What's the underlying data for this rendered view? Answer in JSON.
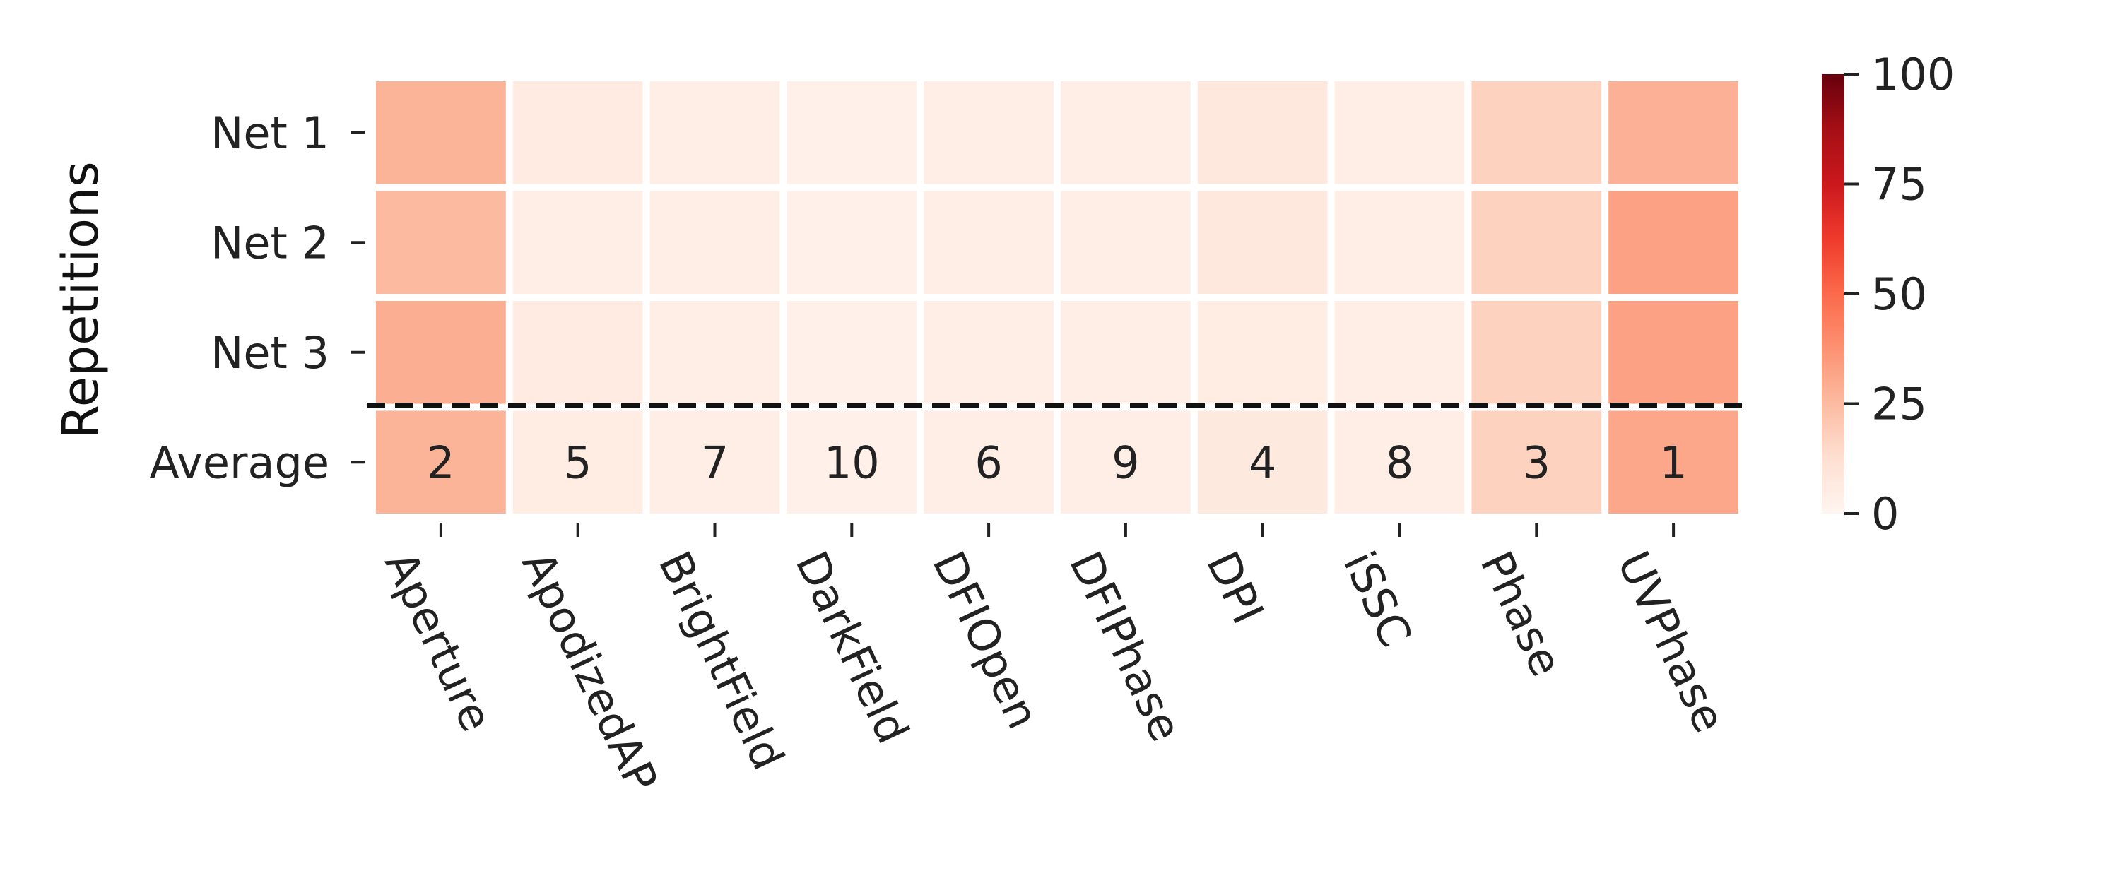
{
  "chart_data": {
    "type": "heatmap",
    "ylabel": "Repetitions",
    "columns": [
      "Aperture",
      "ApodizedAP",
      "BrightField",
      "DarkField",
      "DFIOpen",
      "DFIPhase",
      "DPI",
      "iSSC",
      "Phase",
      "UVPhase"
    ],
    "rows": [
      "Net 1",
      "Net 2",
      "Net 3",
      "Average"
    ],
    "values": [
      [
        27,
        6,
        4,
        3,
        4,
        4,
        8,
        4,
        17,
        28
      ],
      [
        25,
        4,
        4,
        3,
        4,
        4,
        8,
        4,
        17,
        33
      ],
      [
        29,
        6,
        4,
        3,
        4,
        4,
        5,
        4,
        17,
        33
      ],
      [
        27,
        5,
        4,
        3,
        4,
        4,
        7,
        4,
        17,
        31
      ]
    ],
    "annotations": {
      "row": "Average",
      "labels": [
        "2",
        "5",
        "7",
        "10",
        "6",
        "9",
        "4",
        "8",
        "3",
        "1"
      ]
    },
    "colorbar": {
      "colormap": "Reds",
      "min": 0,
      "max": 100,
      "ticks": [
        "0",
        "25",
        "50",
        "75",
        "100"
      ]
    },
    "separator": {
      "style": "dashed",
      "after_row": "Net 3"
    }
  }
}
